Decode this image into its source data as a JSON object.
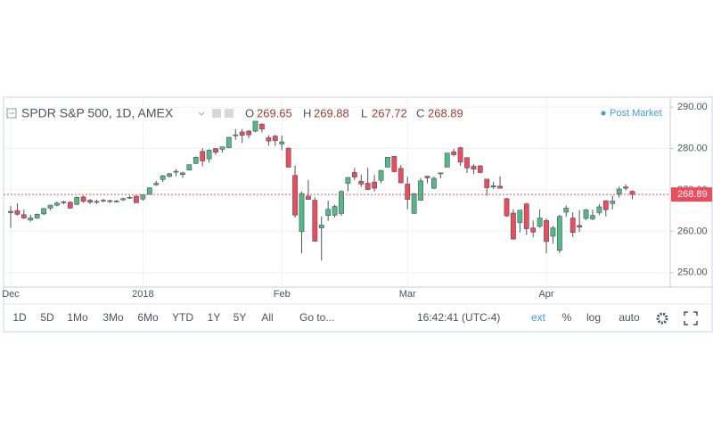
{
  "chart_data": {
    "type": "candlestick",
    "title": "SPDR S&P 500, 1D, AMEX",
    "ohlc_labels": [
      "O",
      "H",
      "L",
      "C"
    ],
    "status": "Post Market",
    "up_color": "#53b987",
    "down_color": "#eb4d5c",
    "grid": true,
    "categories": [
      "Dec",
      null,
      null,
      null,
      null,
      null,
      null,
      null,
      null,
      null,
      null,
      null,
      null,
      null,
      null,
      null,
      null,
      null,
      null,
      null,
      "2018",
      null,
      null,
      null,
      null,
      null,
      null,
      null,
      null,
      null,
      null,
      null,
      null,
      null,
      null,
      null,
      null,
      null,
      null,
      null,
      null,
      "Feb",
      null,
      null,
      null,
      null,
      null,
      null,
      null,
      null,
      null,
      null,
      null,
      null,
      null,
      null,
      null,
      null,
      null,
      null,
      "Mar",
      null,
      null,
      null,
      null,
      null,
      null,
      null,
      null,
      null,
      null,
      null,
      null,
      null,
      null,
      null,
      null,
      null,
      null,
      null,
      null,
      "Apr",
      null,
      null,
      null,
      null,
      null,
      null,
      null,
      null,
      null,
      null,
      null,
      null,
      null
    ],
    "open": [
      264.8,
      265.0,
      264.0,
      262.7,
      263.2,
      264.2,
      265.6,
      266.3,
      267.0,
      267.0,
      266.5,
      268.3,
      267.5,
      267.1,
      267.3,
      267.4,
      267.1,
      267.6,
      268.0,
      268.5,
      267.8,
      268.9,
      271.2,
      272.5,
      273.3,
      274.4,
      273.7,
      274.8,
      276.4,
      279.3,
      277.5,
      280.0,
      279.8,
      280.2,
      283.3,
      284.0,
      284.2,
      284.2,
      285.9,
      282.6,
      283.0,
      281.1,
      280.1,
      273.5,
      259.9,
      268.5,
      267.5,
      260.8,
      263.8,
      263.9,
      264.3,
      271.6,
      274.2,
      272.1,
      271.6,
      271.9,
      272.3,
      275.5,
      278.1,
      275.2,
      271.4,
      264.3,
      267.5,
      273.3,
      270.4,
      274.0,
      275.5,
      279.2,
      280.2,
      277.8,
      275.7,
      275.8,
      272.6,
      270.7,
      270.9,
      267.9,
      264.4,
      262.1,
      266.6,
      260.8,
      261.2,
      262.6,
      258.8,
      255.4,
      264.6,
      263.2,
      261.4,
      263.1,
      263.0,
      264.5,
      267.4,
      266.7,
      269.0,
      270.7,
      269.65
    ],
    "high": [
      266.1,
      266.8,
      265.2,
      264.0,
      264.3,
      265.6,
      266.4,
      267.2,
      267.4,
      267.3,
      268.4,
      268.6,
      267.8,
      267.6,
      267.8,
      267.6,
      267.6,
      268.1,
      268.6,
      268.6,
      268.9,
      270.6,
      272.2,
      273.6,
      274.1,
      275.0,
      274.4,
      276.1,
      278.1,
      280.1,
      279.8,
      280.1,
      280.4,
      282.8,
      284.7,
      284.7,
      284.5,
      286.6,
      286.1,
      283.2,
      283.3,
      283.1,
      280.2,
      275.9,
      269.6,
      272.4,
      268.2,
      263.6,
      267.4,
      266.4,
      269.9,
      273.1,
      275.3,
      273.7,
      275.3,
      273.6,
      274.8,
      277.9,
      278.2,
      276.0,
      273.2,
      269.2,
      272.9,
      273.4,
      273.2,
      274.2,
      278.9,
      279.9,
      280.4,
      277.8,
      276.2,
      276.0,
      272.6,
      272.0,
      273.3,
      268.0,
      265.3,
      265.1,
      266.9,
      262.6,
      265.3,
      263.1,
      261.3,
      264.0,
      266.2,
      264.6,
      265.1,
      265.4,
      265.2,
      266.6,
      267.4,
      268.6,
      270.8,
      271.3,
      269.88
    ],
    "low": [
      260.8,
      263.8,
      263.0,
      262.3,
      263.0,
      263.9,
      265.1,
      266.0,
      266.5,
      265.4,
      266.3,
      266.9,
      266.6,
      266.6,
      267.0,
      266.8,
      266.9,
      267.3,
      267.8,
      266.8,
      267.4,
      268.8,
      271.0,
      271.9,
      272.9,
      273.3,
      272.9,
      274.7,
      276.2,
      275.7,
      276.6,
      278.5,
      279.0,
      280.1,
      282.1,
      281.3,
      282.5,
      283.9,
      283.9,
      280.7,
      280.6,
      279.6,
      275.4,
      263.3,
      254.7,
      267.6,
      257.6,
      252.9,
      262.5,
      263.3,
      263.7,
      269.7,
      272.4,
      270.7,
      269.9,
      269.6,
      271.6,
      275.5,
      274.2,
      271.6,
      265.3,
      264.2,
      267.4,
      271.6,
      270.2,
      272.8,
      275.4,
      278.1,
      275.8,
      274.1,
      273.8,
      274.0,
      268.6,
      270.2,
      270.3,
      263.5,
      258.0,
      259.7,
      259.1,
      258.6,
      260.8,
      254.7,
      257.0,
      254.7,
      263.5,
      258.6,
      259.8,
      262.7,
      262.7,
      263.9,
      263.6,
      265.3,
      268.1,
      269.9,
      267.72
    ],
    "close": [
      264.5,
      264.1,
      263.2,
      263.2,
      264.1,
      265.5,
      266.3,
      266.8,
      267.1,
      265.6,
      268.2,
      267.2,
      267.0,
      267.2,
      267.5,
      267.2,
      267.3,
      267.9,
      268.2,
      266.9,
      268.8,
      270.5,
      271.6,
      273.4,
      273.9,
      274.5,
      274.1,
      276.1,
      277.9,
      277.0,
      279.6,
      279.1,
      280.4,
      282.7,
      283.3,
      283.2,
      283.3,
      286.6,
      284.7,
      281.8,
      281.9,
      281.6,
      275.5,
      263.9,
      269.1,
      267.7,
      257.6,
      261.5,
      265.3,
      266.0,
      269.6,
      273.0,
      273.1,
      271.4,
      270.1,
      270.4,
      274.7,
      277.9,
      274.4,
      271.7,
      267.7,
      269.1,
      272.2,
      272.9,
      272.8,
      274.1,
      278.9,
      278.5,
      276.7,
      275.3,
      275.0,
      274.2,
      270.5,
      271.0,
      270.4,
      263.7,
      258.1,
      265.1,
      260.6,
      259.8,
      263.2,
      257.5,
      260.8,
      263.6,
      265.6,
      259.7,
      261.0,
      265.2,
      263.8,
      265.9,
      265.2,
      267.3,
      270.2,
      270.4,
      268.89
    ],
    "ylim": [
      246.5,
      292.4
    ],
    "yticks": [
      {
        "value": 250,
        "label": "250.00"
      },
      {
        "value": 260,
        "label": "260.00"
      },
      {
        "value": 270,
        "label": "270.00"
      },
      {
        "value": 280,
        "label": "280.00"
      },
      {
        "value": 290,
        "label": "290.00"
      }
    ]
  },
  "toolbar": {
    "ranges": [
      "1D",
      "5D",
      "1Mo",
      "3Mo",
      "6Mo",
      "YTD",
      "1Y",
      "5Y",
      "All"
    ],
    "goto": "Go to...",
    "time": "16:42:41 (UTC-4)",
    "options": [
      "ext",
      "%",
      "log",
      "auto"
    ]
  }
}
